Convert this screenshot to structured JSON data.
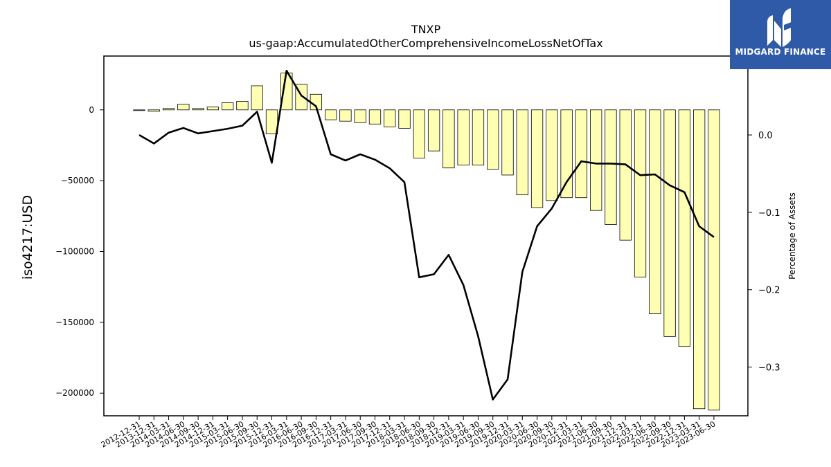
{
  "brand": {
    "name": "MIDGARD FINANCE",
    "logo_icon": "mf-monogram-icon",
    "background": "#2e5aa8"
  },
  "chart_data": {
    "type": "bar+line",
    "title": "TNXP",
    "subtitle": "us-gaap:AccumulatedOtherComprehensiveIncomeLossNetOfTax",
    "ylabel": "iso4217:USD",
    "y2label": "Percentage of Assets",
    "ylim": [
      -216000,
      38000
    ],
    "y2lim": [
      -0.363,
      0.102
    ],
    "yticks": [
      0,
      -50000,
      -100000,
      -150000,
      -200000
    ],
    "ytick_labels": [
      "0",
      "−50000",
      "−100000",
      "−150000",
      "−200000"
    ],
    "y2ticks": [
      0.0,
      -0.1,
      -0.2,
      -0.3
    ],
    "y2tick_labels": [
      "0.0",
      "−0.1",
      "−0.2",
      "−0.3"
    ],
    "bar_color": "#ffffb3",
    "line_color": "#000000",
    "categories": [
      "2012-12-31",
      "2013-12-31",
      "2014-03-31",
      "2014-06-30",
      "2014-09-30",
      "2014-12-31",
      "2015-03-31",
      "2015-06-30",
      "2015-09-30",
      "2015-12-31",
      "2016-03-31",
      "2016-06-30",
      "2016-09-30",
      "2016-12-31",
      "2017-03-31",
      "2017-06-30",
      "2017-09-30",
      "2017-12-31",
      "2018-03-31",
      "2018-06-30",
      "2018-09-30",
      "2018-12-31",
      "2019-03-31",
      "2019-06-30",
      "2019-09-30",
      "2019-12-31",
      "2020-03-31",
      "2020-06-30",
      "2020-09-30",
      "2020-12-31",
      "2021-03-31",
      "2021-06-30",
      "2021-09-30",
      "2021-12-31",
      "2022-03-31",
      "2022-06-30",
      "2022-09-30",
      "2022-12-31",
      "2023-03-31",
      "2023-06-30"
    ],
    "series": [
      {
        "kind": "bar",
        "axis": "left",
        "values": [
          -200,
          -1000,
          1000,
          4000,
          1000,
          2000,
          5000,
          6000,
          17000,
          -17000,
          26000,
          18000,
          11000,
          -7000,
          -8000,
          -9000,
          -10000,
          -12000,
          -13000,
          -34000,
          -29000,
          -41000,
          -39000,
          -39000,
          -42000,
          -46000,
          -60000,
          -69000,
          -64000,
          -62000,
          -62000,
          -71000,
          -81000,
          -92000,
          -118000,
          -144000,
          -160000,
          -167000,
          -211000,
          -212000
        ]
      },
      {
        "kind": "line",
        "axis": "right",
        "values": [
          0.0,
          -0.011,
          0.003,
          0.009,
          0.002,
          0.005,
          0.008,
          0.012,
          0.03,
          -0.036,
          0.083,
          0.051,
          0.037,
          -0.025,
          -0.033,
          -0.025,
          -0.032,
          -0.043,
          -0.061,
          -0.184,
          -0.18,
          -0.155,
          -0.194,
          -0.26,
          -0.342,
          -0.316,
          -0.177,
          -0.118,
          -0.095,
          -0.061,
          -0.034,
          -0.037,
          -0.037,
          -0.038,
          -0.052,
          -0.051,
          -0.065,
          -0.074,
          -0.118,
          -0.132
        ]
      }
    ]
  }
}
